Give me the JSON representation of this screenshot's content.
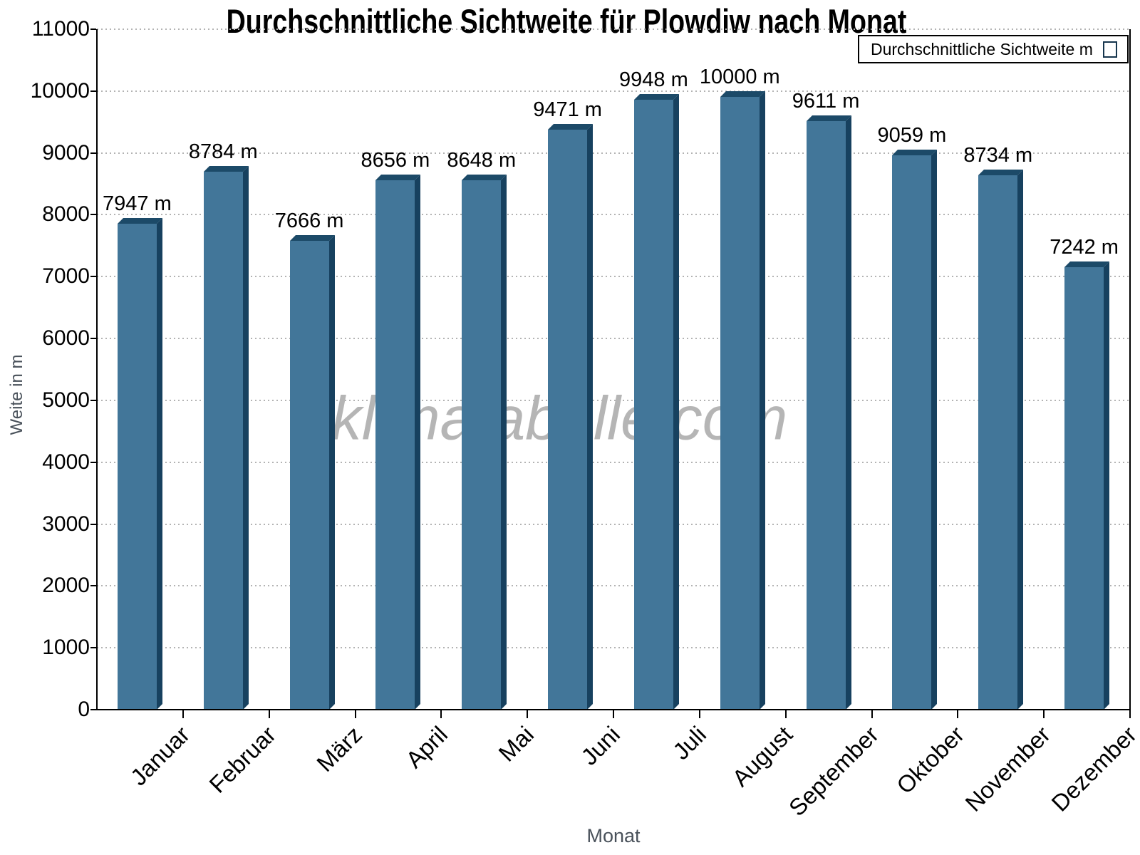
{
  "title": "Durchschnittliche Sichtweite für Plowdiw nach Monat",
  "watermark": "klimatabelle.com",
  "legend": {
    "label": "Durchschnittliche Sichtweite m"
  },
  "x_axis_title": "Monat",
  "y_axis_title": "Weite in m",
  "colors": {
    "bar_face": "#427699",
    "bar_top_edge": "#1C4A68",
    "bar_side_edge": "#17415F",
    "grid": "#b3b3b3",
    "axis": "#000000",
    "axis_titles": "#49515a",
    "watermark": "#b5b5b5"
  },
  "chart_data": {
    "type": "bar",
    "title": "Durchschnittliche Sichtweite für Plowdiw nach Monat",
    "xlabel": "Monat",
    "ylabel": "Weite in m",
    "categories": [
      "Januar",
      "Februar",
      "März",
      "April",
      "Mai",
      "Juni",
      "Juli",
      "August",
      "September",
      "Oktober",
      "November",
      "Dezember"
    ],
    "values": [
      7947,
      8784,
      7666,
      8656,
      8648,
      9471,
      9948,
      10000,
      9611,
      9059,
      8734,
      7242
    ],
    "series_name": "Durchschnittliche Sichtweite m",
    "value_suffix": " m",
    "ylim": [
      0,
      11000
    ],
    "ytick_step": 1000,
    "grid": "horizontal dotted",
    "legend_position": "top-right"
  }
}
